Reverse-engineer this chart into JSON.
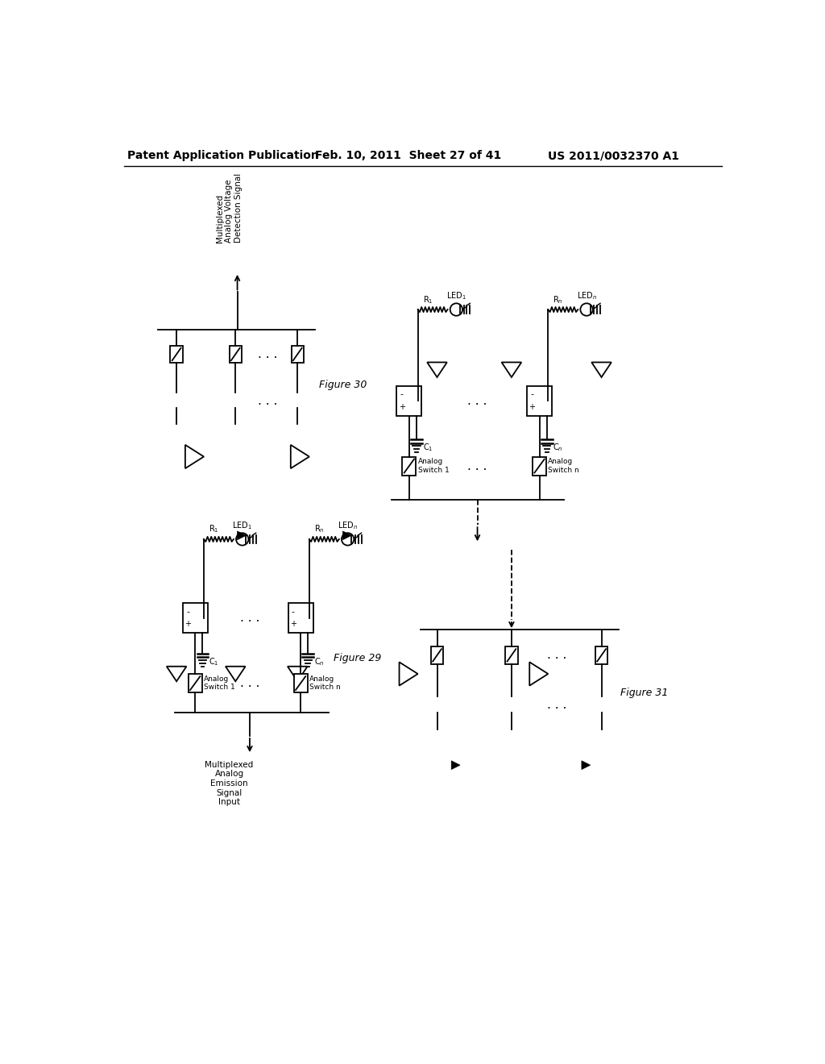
{
  "title_left": "Patent Application Publication",
  "title_center": "Feb. 10, 2011  Sheet 27 of 41",
  "title_right": "US 2011/0032370 A1",
  "bg_color": "#ffffff",
  "fig29_label": "Figure 29",
  "fig30_label": "Figure 30",
  "fig31_label": "Figure 31",
  "fig29_bottom_label": "Multiplexed\nAnalog\nEmission\nSignal\nInput",
  "fig30_top_label": "Multiplexed\nAnalog Voltage\nDetection Signal"
}
